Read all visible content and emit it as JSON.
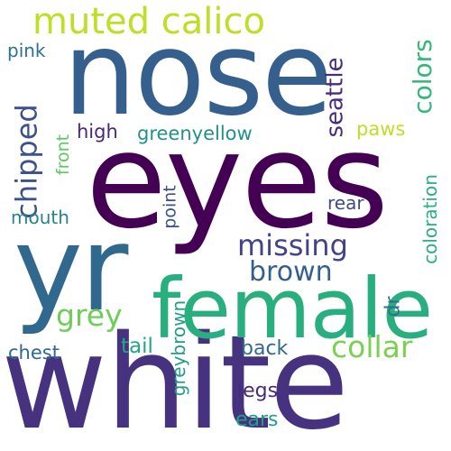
{
  "words": [
    {
      "text": "white",
      "color": "#46327e",
      "orientation": "horizontal"
    },
    {
      "text": "eyes",
      "color": "#440154",
      "orientation": "horizontal"
    },
    {
      "text": "nose",
      "color": "#355f8d",
      "orientation": "horizontal"
    },
    {
      "text": "yr",
      "color": "#31688e",
      "orientation": "horizontal"
    },
    {
      "text": "female",
      "color": "#29af7f",
      "orientation": "horizontal"
    },
    {
      "text": "muted calico",
      "color": "#bddf26",
      "orientation": "horizontal"
    },
    {
      "text": "chipped",
      "color": "#3b528b",
      "orientation": "vertical"
    },
    {
      "text": "missing",
      "color": "#414487",
      "orientation": "horizontal"
    },
    {
      "text": "brown",
      "color": "#355f8d",
      "orientation": "horizontal"
    },
    {
      "text": "grey",
      "color": "#6ece58",
      "orientation": "horizontal"
    },
    {
      "text": "collar",
      "color": "#7ad151",
      "orientation": "horizontal"
    },
    {
      "text": "colors",
      "color": "#35b779",
      "orientation": "vertical"
    },
    {
      "text": "seattle",
      "color": "#472d7b",
      "orientation": "vertical"
    },
    {
      "text": "greenyellow",
      "color": "#21918c",
      "orientation": "horizontal"
    },
    {
      "text": "high",
      "color": "#482878",
      "orientation": "horizontal"
    },
    {
      "text": "pink",
      "color": "#2c728e",
      "orientation": "horizontal"
    },
    {
      "text": "paws",
      "color": "#bddf26",
      "orientation": "horizontal"
    },
    {
      "text": "front",
      "color": "#5ec962",
      "orientation": "vertical"
    },
    {
      "text": "mouth",
      "color": "#26828e",
      "orientation": "horizontal"
    },
    {
      "text": "rear",
      "color": "#3e4a89",
      "orientation": "horizontal"
    },
    {
      "text": "point",
      "color": "#3b528b",
      "orientation": "vertical"
    },
    {
      "text": "coloration",
      "color": "#2ab07f",
      "orientation": "vertical"
    },
    {
      "text": "dr",
      "color": "#2e6e8e",
      "orientation": "vertical"
    },
    {
      "text": "chest",
      "color": "#31688e",
      "orientation": "horizontal"
    },
    {
      "text": "tail",
      "color": "#22a884",
      "orientation": "horizontal"
    },
    {
      "text": "greybrown",
      "color": "#1f9e89",
      "orientation": "vertical"
    },
    {
      "text": "back",
      "color": "#31688e",
      "orientation": "horizontal"
    },
    {
      "text": "legs",
      "color": "#472c7a",
      "orientation": "horizontal"
    },
    {
      "text": "ears",
      "color": "#1fa187",
      "orientation": "horizontal"
    }
  ]
}
